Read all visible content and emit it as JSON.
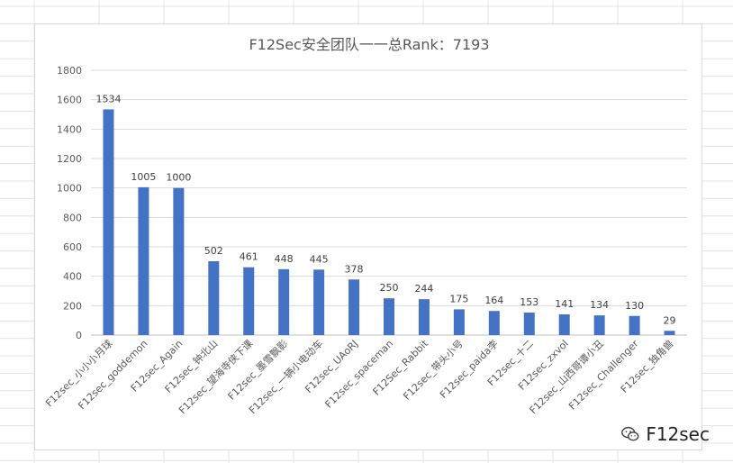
{
  "chart_data": {
    "type": "bar",
    "title": "F12Sec安全团队一一总Rank：7193",
    "xlabel": "",
    "ylabel": "",
    "ylim": [
      0,
      1800
    ],
    "yticks": [
      0,
      200,
      400,
      600,
      800,
      1000,
      1200,
      1400,
      1600,
      1800
    ],
    "grid": true,
    "legend": "none",
    "bar_color": "#4472c4",
    "categories": [
      "F12sec_小小小月球",
      "F12sec_goddemon",
      "F12sec_Again",
      "F12sec_钟北山",
      "F12sec_望海寺侠下课",
      "F12sec_墨雪飘影",
      "F12sec_一辆小电动车",
      "F12sec_UAoRJ",
      "F12sec_spaceman",
      "F12Sec_Rabbit",
      "F12sec_带头小号",
      "F12sec_paida李",
      "F12sec_十二",
      "F12sec_zxvol",
      "F12sec_山西哥谭小丑",
      "F12sec_Challenger",
      "F12sec_独角兽"
    ],
    "values": [
      1534,
      1005,
      1000,
      502,
      461,
      448,
      445,
      378,
      250,
      244,
      175,
      164,
      153,
      141,
      134,
      130,
      29
    ]
  },
  "watermark": {
    "icon": "wechat-icon",
    "text": "F12sec"
  }
}
